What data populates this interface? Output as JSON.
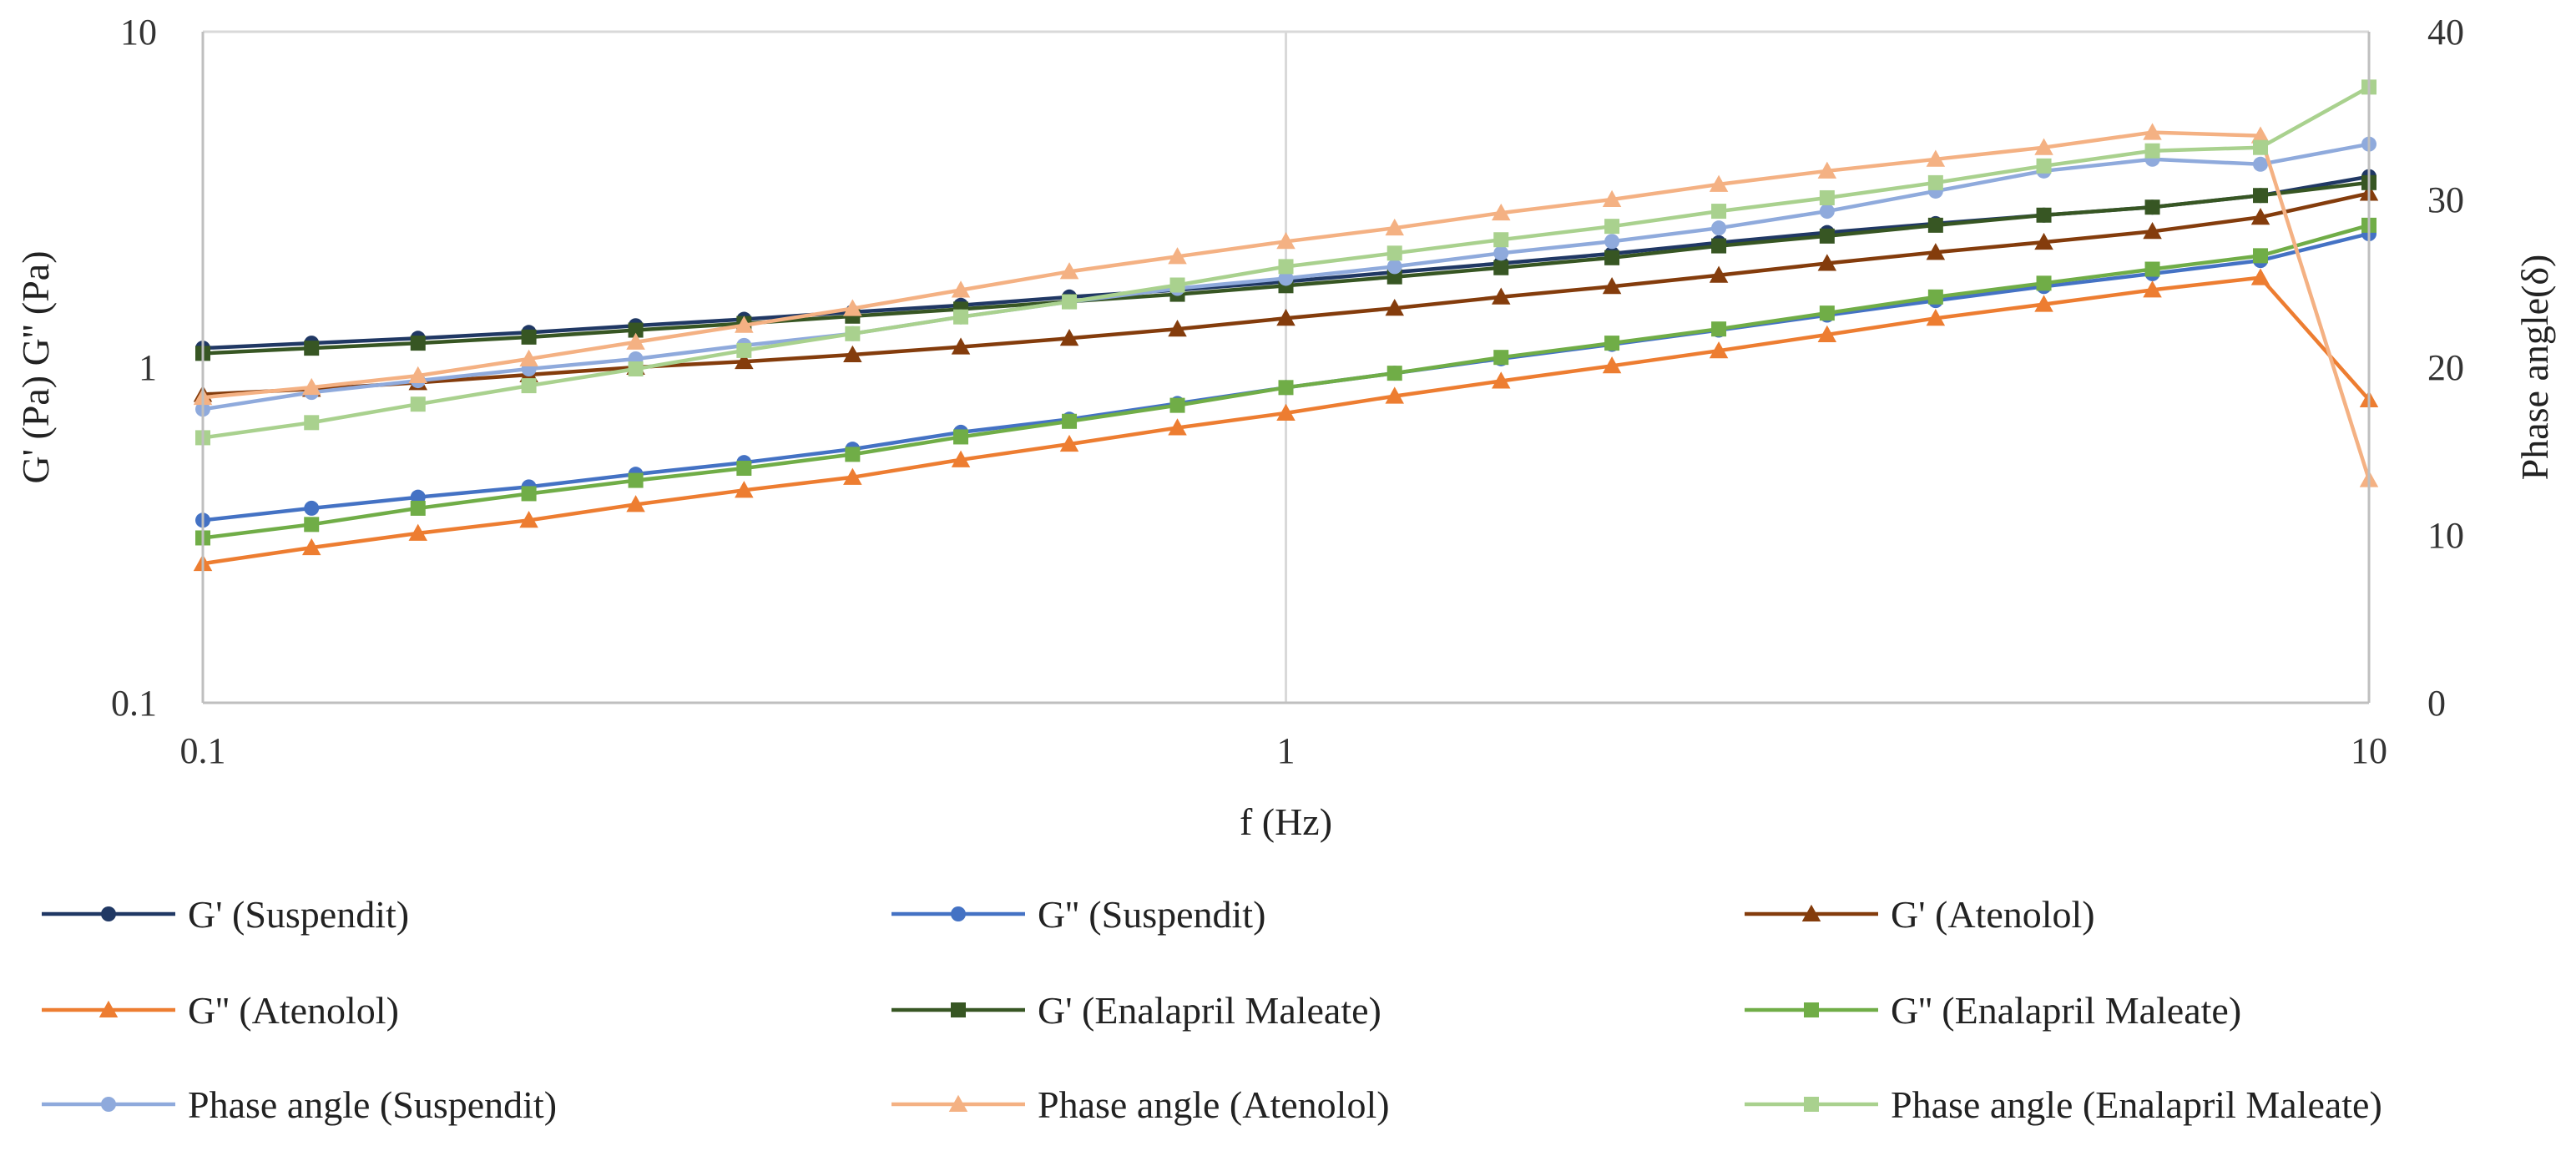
{
  "chart_data": {
    "type": "line",
    "title": "",
    "xlabel": "f (Hz)",
    "ylabel": "G' (Pa) G'' (Pa)",
    "y2label": "Phase angle(δ)",
    "x_scale": "log",
    "y_scale": "log",
    "xlim": [
      0.1,
      10
    ],
    "ylim": [
      0.1,
      10
    ],
    "y2lim": [
      0,
      40
    ],
    "x_ticks": [
      0.1,
      1,
      10
    ],
    "x_tick_labels": [
      "0.1",
      "1",
      "10"
    ],
    "y_ticks": [
      0.1,
      1,
      10
    ],
    "y_tick_labels": [
      "0.1",
      "1",
      "10"
    ],
    "y2_ticks": [
      0,
      10,
      20,
      30,
      40
    ],
    "y2_tick_labels": [
      "0",
      "10",
      "20",
      "30",
      "40"
    ],
    "grid": "vertical",
    "legend_position": "bottom",
    "x": [
      0.1,
      0.126,
      0.158,
      0.2,
      0.251,
      0.316,
      0.398,
      0.501,
      0.631,
      0.794,
      1.0,
      1.26,
      1.58,
      2.0,
      2.51,
      3.16,
      3.98,
      5.01,
      6.31,
      7.94,
      10.0
    ],
    "series": [
      {
        "name": "G' (Suspendit)",
        "axis": "left",
        "color": "#203864",
        "marker": "circle",
        "values": [
          1.14,
          1.18,
          1.22,
          1.27,
          1.33,
          1.39,
          1.46,
          1.53,
          1.62,
          1.7,
          1.8,
          1.92,
          2.04,
          2.18,
          2.35,
          2.52,
          2.68,
          2.84,
          3.0,
          3.25,
          3.7
        ]
      },
      {
        "name": "G'' (Suspendit)",
        "axis": "left",
        "color": "#4472C4",
        "marker": "circle",
        "values": [
          0.35,
          0.38,
          0.41,
          0.44,
          0.48,
          0.52,
          0.57,
          0.64,
          0.7,
          0.78,
          0.87,
          0.96,
          1.06,
          1.17,
          1.29,
          1.43,
          1.58,
          1.74,
          1.9,
          2.08,
          2.5
        ]
      },
      {
        "name": "G' (Atenolol)",
        "axis": "left",
        "color": "#843C0C",
        "marker": "triangle",
        "values": [
          0.83,
          0.86,
          0.9,
          0.95,
          1.0,
          1.04,
          1.09,
          1.15,
          1.22,
          1.3,
          1.4,
          1.5,
          1.62,
          1.74,
          1.88,
          2.04,
          2.2,
          2.36,
          2.54,
          2.8,
          3.3
        ]
      },
      {
        "name": "G'' (Atenolol)",
        "axis": "left",
        "color": "#ED7D31",
        "marker": "triangle",
        "values": [
          0.26,
          0.29,
          0.32,
          0.35,
          0.39,
          0.43,
          0.47,
          0.53,
          0.59,
          0.66,
          0.73,
          0.82,
          0.91,
          1.01,
          1.12,
          1.25,
          1.4,
          1.54,
          1.7,
          1.85,
          0.8
        ]
      },
      {
        "name": "G' (Enalapril Maleate)",
        "axis": "left",
        "color": "#375623",
        "marker": "square",
        "values": [
          1.1,
          1.14,
          1.18,
          1.23,
          1.29,
          1.35,
          1.42,
          1.49,
          1.57,
          1.65,
          1.75,
          1.86,
          1.98,
          2.12,
          2.3,
          2.46,
          2.65,
          2.84,
          3.0,
          3.25,
          3.55
        ]
      },
      {
        "name": "G'' (Enalapril Maleate)",
        "axis": "left",
        "color": "#70AD47",
        "marker": "square",
        "values": [
          0.31,
          0.34,
          0.38,
          0.42,
          0.46,
          0.5,
          0.55,
          0.62,
          0.69,
          0.77,
          0.87,
          0.96,
          1.07,
          1.18,
          1.3,
          1.45,
          1.62,
          1.78,
          1.96,
          2.15,
          2.65
        ]
      },
      {
        "name": "Phase angle (Suspendit)",
        "axis": "right",
        "color": "#8FAADC",
        "marker": "circle",
        "values": [
          17.5,
          18.5,
          19.2,
          19.9,
          20.5,
          21.3,
          22.0,
          23.0,
          23.9,
          24.7,
          25.3,
          26.0,
          26.8,
          27.5,
          28.3,
          29.3,
          30.5,
          31.7,
          32.4,
          32.1,
          33.3
        ]
      },
      {
        "name": "Phase angle (Atenolol)",
        "axis": "right",
        "color": "#F4B183",
        "marker": "triangle",
        "values": [
          18.2,
          18.8,
          19.5,
          20.5,
          21.5,
          22.5,
          23.5,
          24.6,
          25.7,
          26.6,
          27.5,
          28.3,
          29.2,
          30.0,
          30.9,
          31.7,
          32.4,
          33.1,
          34.0,
          33.8,
          13.3
        ]
      },
      {
        "name": "Phase angle (Enalapril Maleate)",
        "axis": "right",
        "color": "#A9D18E",
        "marker": "square",
        "values": [
          15.8,
          16.7,
          17.8,
          18.9,
          19.9,
          21.0,
          22.0,
          23.0,
          23.9,
          24.9,
          26.0,
          26.8,
          27.6,
          28.4,
          29.3,
          30.1,
          31.0,
          32.0,
          32.9,
          33.1,
          36.7
        ]
      }
    ]
  }
}
